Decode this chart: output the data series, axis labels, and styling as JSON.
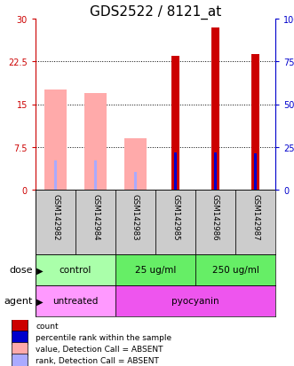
{
  "title": "GDS2522 / 8121_at",
  "samples": [
    "GSM142982",
    "GSM142984",
    "GSM142983",
    "GSM142985",
    "GSM142986",
    "GSM142987"
  ],
  "count_values": [
    null,
    null,
    null,
    23.5,
    28.5,
    23.8
  ],
  "rank_values": [
    null,
    null,
    null,
    22.0,
    22.0,
    21.0
  ],
  "absent_value_bars": [
    17.5,
    17.0,
    9.0,
    null,
    null,
    null
  ],
  "absent_rank_bars": [
    17.0,
    17.0,
    10.5,
    null,
    null,
    null
  ],
  "ylim_left": [
    0,
    30
  ],
  "ylim_right": [
    0,
    100
  ],
  "yticks_left": [
    0,
    7.5,
    15,
    22.5,
    30
  ],
  "ytick_labels_left": [
    "0",
    "7.5",
    "15",
    "22.5",
    "30"
  ],
  "yticks_right": [
    0,
    25,
    50,
    75,
    100
  ],
  "ytick_labels_right": [
    "0",
    "25",
    "50",
    "75",
    "100%"
  ],
  "gridlines": [
    7.5,
    15,
    22.5
  ],
  "count_color": "#cc0000",
  "rank_color": "#0000cc",
  "absent_value_color": "#ffaaaa",
  "absent_rank_color": "#aaaaff",
  "dose_labels": [
    [
      "control",
      0,
      2
    ],
    [
      "25 ug/ml",
      2,
      4
    ],
    [
      "250 ug/ml",
      4,
      6
    ]
  ],
  "agent_labels": [
    [
      "untreated",
      0,
      2
    ],
    [
      "pyocyanin",
      2,
      6
    ]
  ],
  "dose_colors": [
    "#aaffaa",
    "#66ee66",
    "#66ee66"
  ],
  "agent_colors": [
    "#ff99ff",
    "#ee55ee"
  ],
  "label_row_bg": "#cccccc",
  "title_fontsize": 11,
  "axis_label_color_left": "#cc0000",
  "axis_label_color_right": "#0000cc",
  "legend_items": [
    [
      "#cc0000",
      "count"
    ],
    [
      "#0000cc",
      "percentile rank within the sample"
    ],
    [
      "#ffaaaa",
      "value, Detection Call = ABSENT"
    ],
    [
      "#aaaaff",
      "rank, Detection Call = ABSENT"
    ]
  ]
}
